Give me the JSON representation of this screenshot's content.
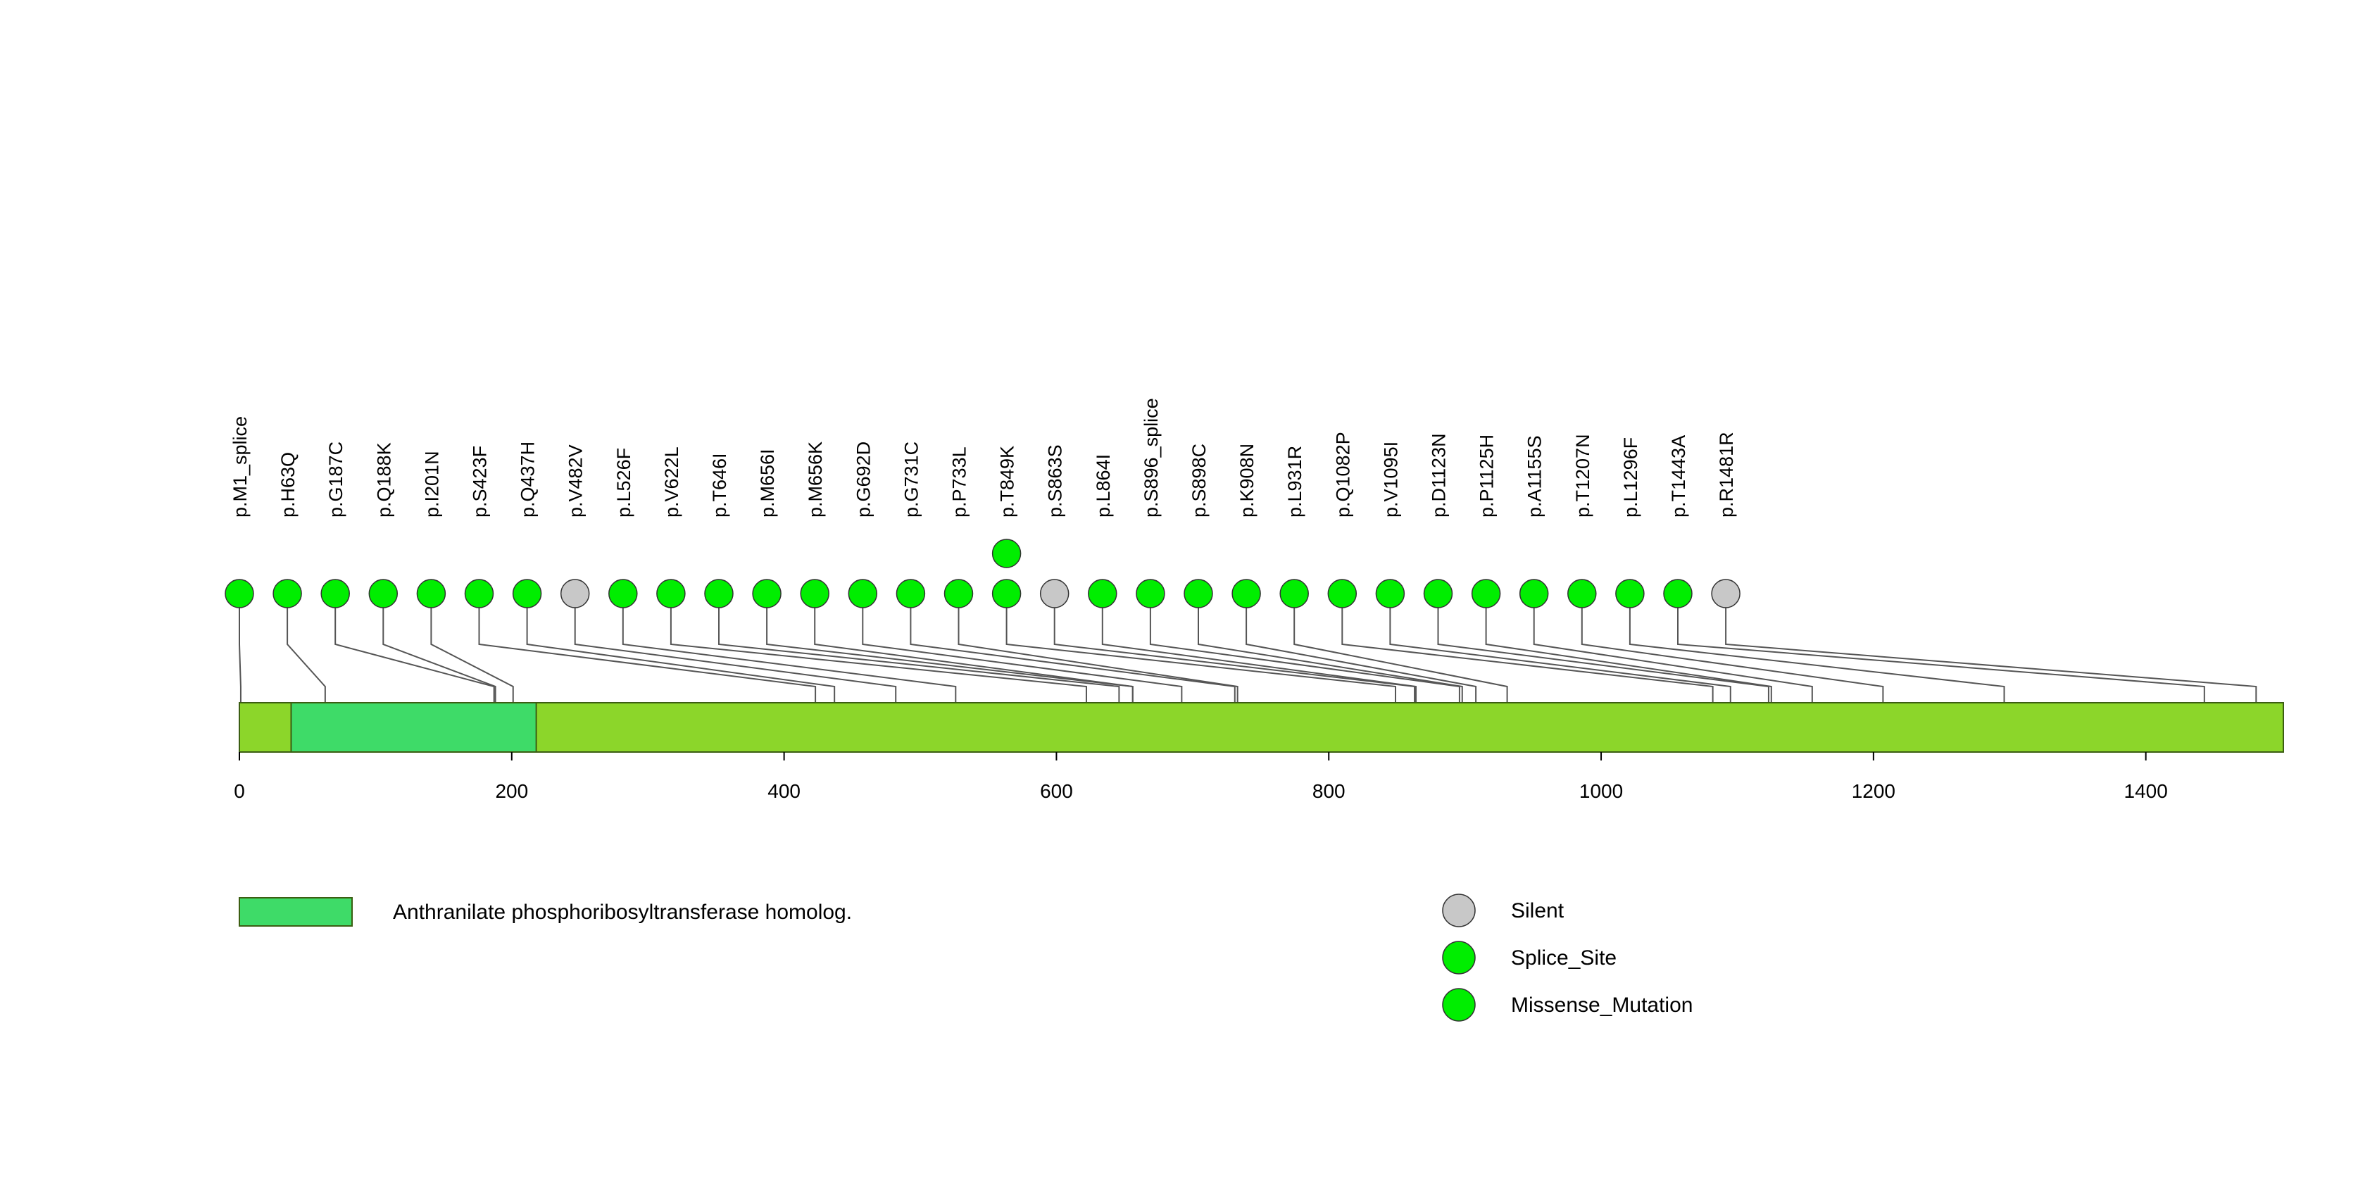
{
  "protein": {
    "length": 1501,
    "color": "#8CD62A",
    "border_color": "#3B5E12"
  },
  "domains": [
    {
      "name": "Anthranilate phosphoribosyltransferase homolog.",
      "start": 38,
      "end": 218,
      "color": "#3EDB68"
    }
  ],
  "axis": {
    "ticks": [
      0,
      200,
      400,
      600,
      800,
      1000,
      1200,
      1400
    ]
  },
  "mutations": [
    {
      "label": "p.M1_splice",
      "pos": 1,
      "slot": 0,
      "type": "Splice_Site",
      "stack": 0
    },
    {
      "label": "p.H63Q",
      "pos": 63,
      "slot": 1,
      "type": "Missense_Mutation",
      "stack": 0
    },
    {
      "label": "p.G187C",
      "pos": 187,
      "slot": 2,
      "type": "Missense_Mutation",
      "stack": 0
    },
    {
      "label": "p.Q188K",
      "pos": 188,
      "slot": 3,
      "type": "Missense_Mutation",
      "stack": 0
    },
    {
      "label": "p.I201N",
      "pos": 201,
      "slot": 4,
      "type": "Missense_Mutation",
      "stack": 0
    },
    {
      "label": "p.S423F",
      "pos": 423,
      "slot": 5,
      "type": "Missense_Mutation",
      "stack": 0
    },
    {
      "label": "p.Q437H",
      "pos": 437,
      "slot": 6,
      "type": "Missense_Mutation",
      "stack": 0
    },
    {
      "label": "p.V482V",
      "pos": 482,
      "slot": 7,
      "type": "Silent",
      "stack": 0
    },
    {
      "label": "p.L526F",
      "pos": 526,
      "slot": 8,
      "type": "Missense_Mutation",
      "stack": 0
    },
    {
      "label": "p.V622L",
      "pos": 622,
      "slot": 9,
      "type": "Missense_Mutation",
      "stack": 0
    },
    {
      "label": "p.T646I",
      "pos": 646,
      "slot": 10,
      "type": "Missense_Mutation",
      "stack": 0
    },
    {
      "label": "p.M656I",
      "pos": 656,
      "slot": 11,
      "type": "Missense_Mutation",
      "stack": 0
    },
    {
      "label": "p.M656K",
      "pos": 656,
      "slot": 12,
      "type": "Missense_Mutation",
      "stack": 0
    },
    {
      "label": "p.G692D",
      "pos": 692,
      "slot": 13,
      "type": "Missense_Mutation",
      "stack": 0
    },
    {
      "label": "p.G731C",
      "pos": 731,
      "slot": 14,
      "type": "Missense_Mutation",
      "stack": 0
    },
    {
      "label": "p.P733L",
      "pos": 733,
      "slot": 15,
      "type": "Missense_Mutation",
      "stack": 0
    },
    {
      "label": "p.T849K",
      "pos": 849,
      "slot": 16,
      "type": "Missense_Mutation",
      "stack": 0
    },
    {
      "label": "",
      "pos": 849,
      "slot": 16,
      "type": "Missense_Mutation",
      "stack": 1
    },
    {
      "label": "p.S863S",
      "pos": 863,
      "slot": 17,
      "type": "Silent",
      "stack": 0
    },
    {
      "label": "p.L864I",
      "pos": 864,
      "slot": 18,
      "type": "Missense_Mutation",
      "stack": 0
    },
    {
      "label": "p.S896_splice",
      "pos": 896,
      "slot": 19,
      "type": "Splice_Site",
      "stack": 0
    },
    {
      "label": "p.S898C",
      "pos": 898,
      "slot": 20,
      "type": "Missense_Mutation",
      "stack": 0
    },
    {
      "label": "p.K908N",
      "pos": 908,
      "slot": 21,
      "type": "Missense_Mutation",
      "stack": 0
    },
    {
      "label": "p.L931R",
      "pos": 931,
      "slot": 22,
      "type": "Missense_Mutation",
      "stack": 0
    },
    {
      "label": "p.Q1082P",
      "pos": 1082,
      "slot": 23,
      "type": "Missense_Mutation",
      "stack": 0
    },
    {
      "label": "p.V1095I",
      "pos": 1095,
      "slot": 24,
      "type": "Missense_Mutation",
      "stack": 0
    },
    {
      "label": "p.D1123N",
      "pos": 1123,
      "slot": 25,
      "type": "Missense_Mutation",
      "stack": 0
    },
    {
      "label": "p.P1125H",
      "pos": 1125,
      "slot": 26,
      "type": "Missense_Mutation",
      "stack": 0
    },
    {
      "label": "p.A1155S",
      "pos": 1155,
      "slot": 27,
      "type": "Missense_Mutation",
      "stack": 0
    },
    {
      "label": "p.T1207N",
      "pos": 1207,
      "slot": 28,
      "type": "Missense_Mutation",
      "stack": 0
    },
    {
      "label": "p.L1296F",
      "pos": 1296,
      "slot": 29,
      "type": "Missense_Mutation",
      "stack": 0
    },
    {
      "label": "p.T1443A",
      "pos": 1443,
      "slot": 30,
      "type": "Missense_Mutation",
      "stack": 0
    },
    {
      "label": "p.R1481R",
      "pos": 1481,
      "slot": 31,
      "type": "Silent",
      "stack": 0
    }
  ],
  "legend": {
    "domain_label": "Anthranilate phosphoribosyltransferase homolog.",
    "domain_color": "#3EDB68",
    "types": [
      {
        "name": "Silent",
        "color": "#C8C8C8"
      },
      {
        "name": "Splice_Site",
        "color": "#00EE00"
      },
      {
        "name": "Missense_Mutation",
        "color": "#00EE00"
      }
    ]
  },
  "mutation_colors": {
    "Silent": "#C8C8C8",
    "Splice_Site": "#00EE00",
    "Missense_Mutation": "#00EE00"
  }
}
